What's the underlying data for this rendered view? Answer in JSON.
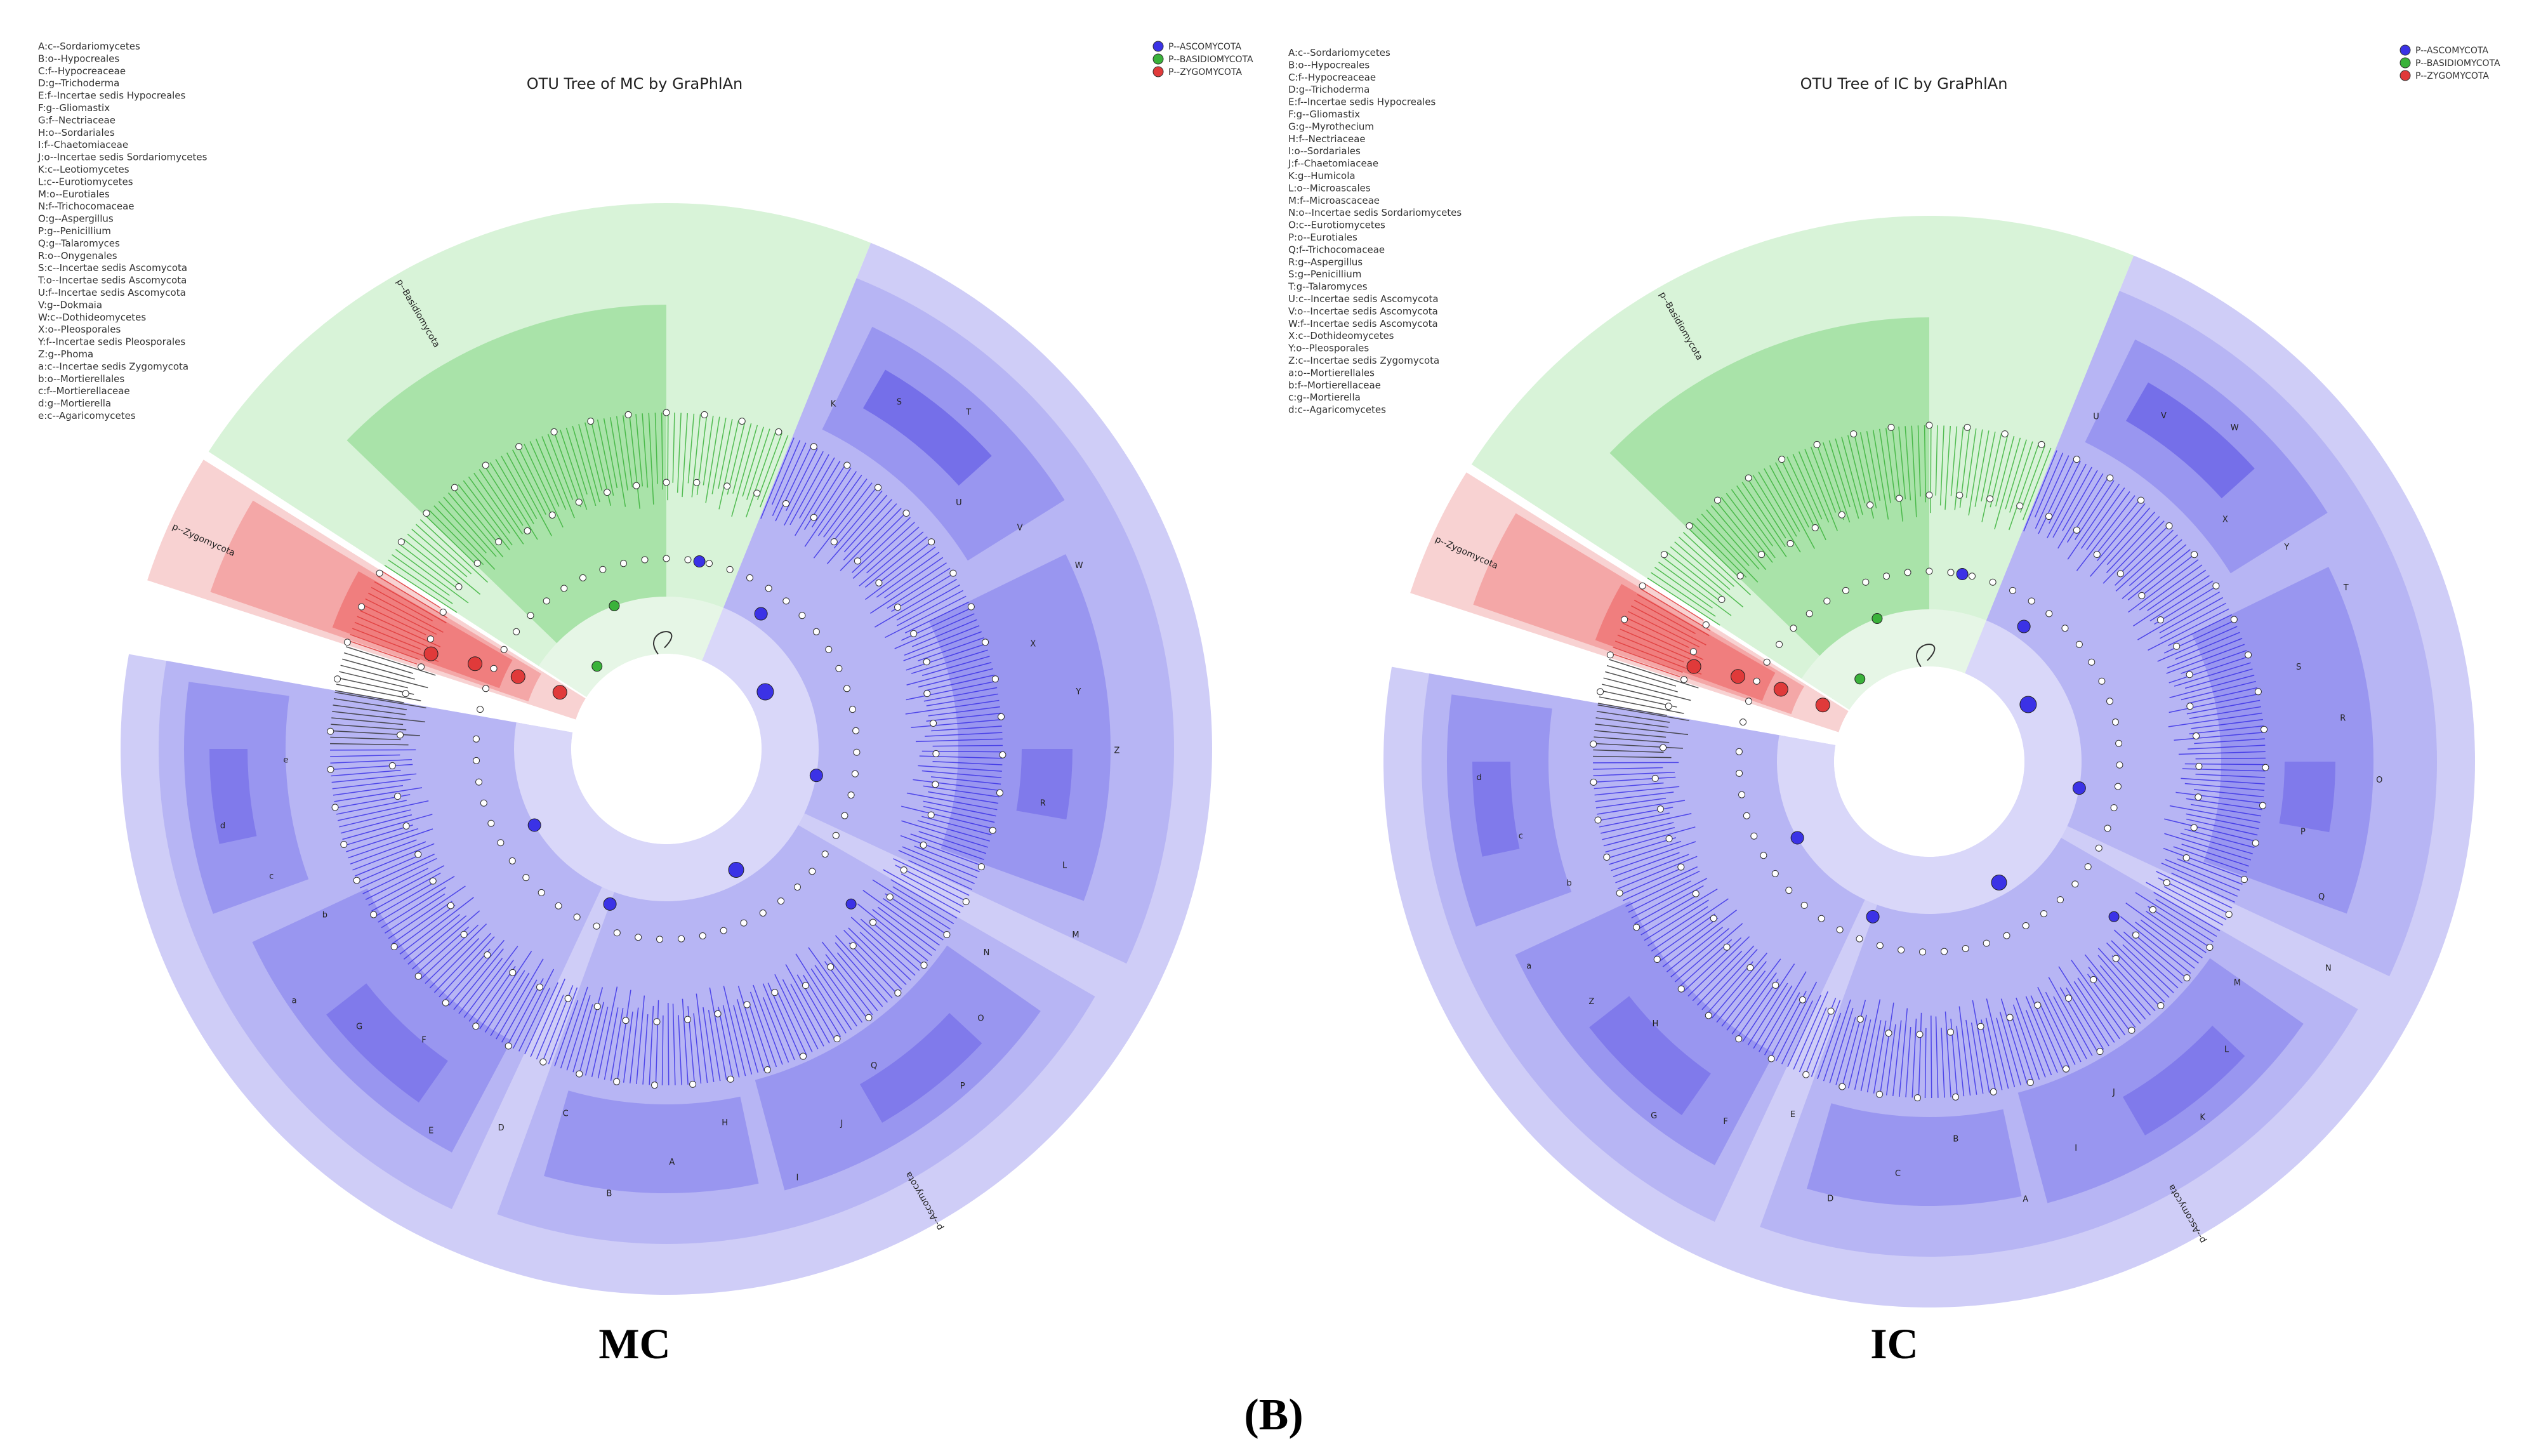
{
  "figure_label": "(B)",
  "colors": {
    "ascomycota": "#3b32e6",
    "basidiomycota": "#3ab23a",
    "zygomycota": "#e03a3a",
    "ring_light": "#cfcdf7",
    "ring_mid": "#b3b0f3",
    "ring_dark": "#9490ee",
    "green_bg": "#d8f3d8",
    "green_dark": "#a9e3a9",
    "red_bg": "#f8d2d2",
    "red_dark": "#f07e7e"
  },
  "panels": [
    {
      "id": "mc",
      "name": "MC",
      "title": "OTU Tree of MC by GraPhlAn",
      "legend": [
        "P--ASCOMYCOTA",
        "P--BASIDIOMYCOTA",
        "P--ZYGOMYCOTA"
      ],
      "phylum_labels": [
        "p--Basidiomycota",
        "p--Zygomycota",
        "p--Ascomycota"
      ],
      "key": [
        "A:c--Sordariomycetes",
        "B:o--Hypocreales",
        "C:f--Hypocreaceae",
        "D:g--Trichoderma",
        "E:f--Incertae sedis Hypocreales",
        "F:g--Gliomastix",
        "G:f--Nectriaceae",
        "H:o--Sordariales",
        "I:f--Chaetomiaceae",
        "J:o--Incertae sedis Sordariomycetes",
        "K:c--Leotiomycetes",
        "L:c--Eurotiomycetes",
        "M:o--Eurotiales",
        "N:f--Trichocomaceae",
        "O:g--Aspergillus",
        "P:g--Penicillium",
        "Q:g--Talaromyces",
        "R:o--Onygenales",
        "S:c--Incertae sedis Ascomycota",
        "T:o--Incertae sedis Ascomycota",
        "U:f--Incertae sedis Ascomycota",
        "V:g--Dokmaia",
        "W:c--Dothideomycetes",
        "X:o--Pleosporales",
        "Y:f--Incertae sedis Pleosporales",
        "Z:g--Phoma",
        "a:c--Incertae sedis Zygomycota",
        "b:o--Mortierellales",
        "c:f--Mortierellaceae",
        "d:g--Mortierella",
        "e:c--Agaricomycetes"
      ],
      "clade_letters": [
        "K",
        "S",
        "T",
        "U",
        "V",
        "W",
        "X",
        "Y",
        "Z",
        "R",
        "L",
        "M",
        "N",
        "O",
        "P",
        "Q",
        "J",
        "I",
        "H",
        "A",
        "B",
        "C",
        "D",
        "E",
        "F",
        "G",
        "a",
        "b",
        "c",
        "d",
        "e"
      ]
    },
    {
      "id": "ic",
      "name": "IC",
      "title": "OTU Tree of IC by GraPhlAn",
      "legend": [
        "P--ASCOMYCOTA",
        "P--BASIDIOMYCOTA",
        "P--ZYGOMYCOTA"
      ],
      "phylum_labels": [
        "p--Basidiomycota",
        "p--Zygomycota",
        "p--Ascomycota"
      ],
      "key": [
        "A:c--Sordariomycetes",
        "B:o--Hypocreales",
        "C:f--Hypocreaceae",
        "D:g--Trichoderma",
        "E:f--Incertae sedis Hypocreales",
        "F:g--Gliomastix",
        "G:g--Myrothecium",
        "H:f--Nectriaceae",
        "I:o--Sordariales",
        "J:f--Chaetomiaceae",
        "K:g--Humicola",
        "L:o--Microascales",
        "M:f--Microascaceae",
        "N:o--Incertae sedis Sordariomycetes",
        "O:c--Eurotiomycetes",
        "P:o--Eurotiales",
        "Q:f--Trichocomaceae",
        "R:g--Aspergillus",
        "S:g--Penicillium",
        "T:g--Talaromyces",
        "U:c--Incertae sedis Ascomycota",
        "V:o--Incertae sedis Ascomycota",
        "W:f--Incertae sedis Ascomycota",
        "X:c--Dothideomycetes",
        "Y:o--Pleosporales",
        "Z:c--Incertae sedis Zygomycota",
        "a:o--Mortierellales",
        "b:f--Mortierellaceae",
        "c:g--Mortierella",
        "d:c--Agaricomycetes"
      ],
      "clade_letters": [
        "U",
        "V",
        "W",
        "X",
        "Y",
        "T",
        "S",
        "R",
        "O",
        "P",
        "Q",
        "N",
        "M",
        "L",
        "K",
        "J",
        "I",
        "A",
        "B",
        "C",
        "D",
        "E",
        "F",
        "G",
        "H",
        "Z",
        "a",
        "b",
        "c",
        "d"
      ]
    }
  ]
}
